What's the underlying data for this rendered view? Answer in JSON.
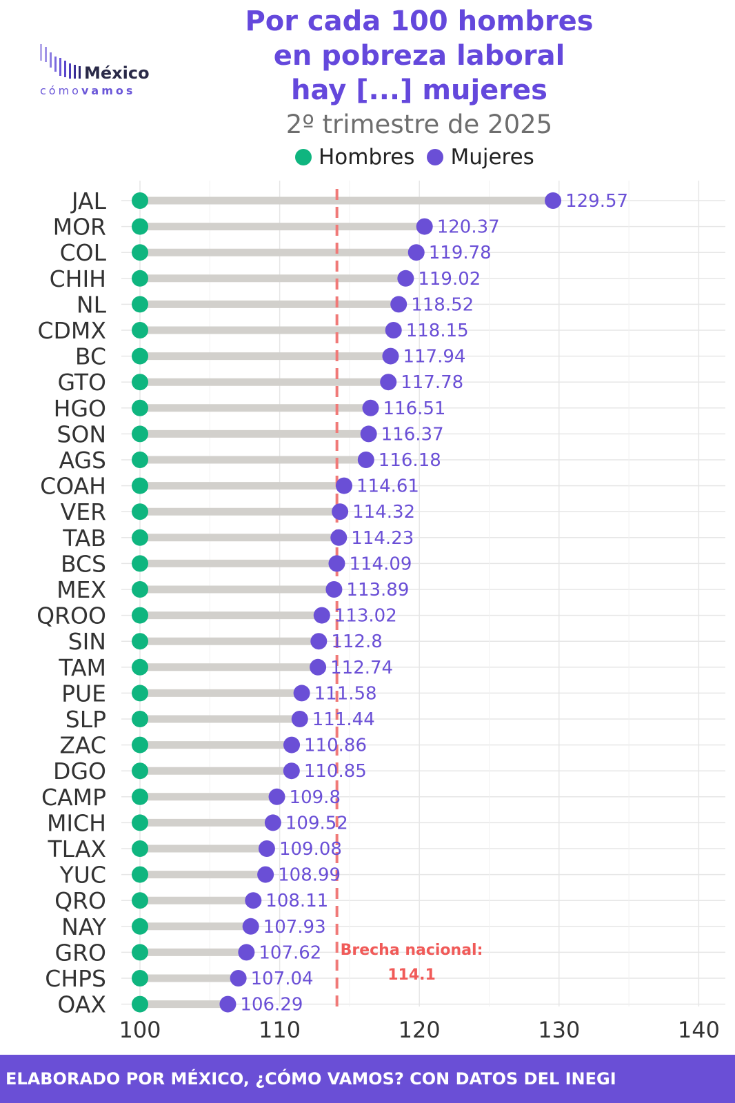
{
  "logo": {
    "word1": "México",
    "word2a": "cómo",
    "word2b": "vamos"
  },
  "title_lines": [
    "Por cada 100 hombres",
    "en pobreza laboral",
    "hay [...] mujeres"
  ],
  "subtitle": "2º trimestre de 2025",
  "legend": [
    {
      "label": "Hombres",
      "color": "#0fb57f"
    },
    {
      "label": "Mujeres",
      "color": "#6a4fd6"
    }
  ],
  "colors": {
    "hombres": "#0fb57f",
    "mujeres": "#6a4fd6",
    "segment": "#d2d0cc",
    "reference": "#f07a78",
    "reference_text": "#f05a58",
    "grid": "#e6e6e6",
    "footer_bg": "#6a4fd6"
  },
  "chart_data": {
    "type": "dumbbell",
    "title": "Por cada 100 hombres en pobreza laboral hay [...] mujeres",
    "subtitle": "2º trimestre de 2025",
    "xlim": [
      100,
      140
    ],
    "x_ticks": [
      100,
      110,
      120,
      130,
      140
    ],
    "grid": true,
    "legend_position": "top",
    "categories": [
      "JAL",
      "MOR",
      "COL",
      "CHIH",
      "NL",
      "CDMX",
      "BC",
      "GTO",
      "HGO",
      "SON",
      "AGS",
      "COAH",
      "VER",
      "TAB",
      "BCS",
      "MEX",
      "QROO",
      "SIN",
      "TAM",
      "PUE",
      "SLP",
      "ZAC",
      "DGO",
      "CAMP",
      "MICH",
      "TLAX",
      "YUC",
      "QRO",
      "NAY",
      "GRO",
      "CHPS",
      "OAX"
    ],
    "series": [
      {
        "name": "Hombres",
        "values": [
          100,
          100,
          100,
          100,
          100,
          100,
          100,
          100,
          100,
          100,
          100,
          100,
          100,
          100,
          100,
          100,
          100,
          100,
          100,
          100,
          100,
          100,
          100,
          100,
          100,
          100,
          100,
          100,
          100,
          100,
          100,
          100
        ]
      },
      {
        "name": "Mujeres",
        "values": [
          129.57,
          120.37,
          119.78,
          119.02,
          118.52,
          118.15,
          117.94,
          117.78,
          116.51,
          116.37,
          116.18,
          114.61,
          114.32,
          114.23,
          114.09,
          113.89,
          113.02,
          112.8,
          112.74,
          111.58,
          111.44,
          110.86,
          110.85,
          109.8,
          109.52,
          109.08,
          108.99,
          108.11,
          107.93,
          107.62,
          107.04,
          106.29
        ]
      }
    ],
    "value_labels": [
      "129.57",
      "120.37",
      "119.78",
      "119.02",
      "118.52",
      "118.15",
      "117.94",
      "117.78",
      "116.51",
      "116.37",
      "116.18",
      "114.61",
      "114.32",
      "114.23",
      "114.09",
      "113.89",
      "113.02",
      "112.8",
      "112.74",
      "111.58",
      "111.44",
      "110.86",
      "110.85",
      "109.8",
      "109.52",
      "109.08",
      "108.99",
      "108.11",
      "107.93",
      "107.62",
      "107.04",
      "106.29"
    ],
    "reference_line": {
      "value": 114.1,
      "label_line1": "Brecha nacional:",
      "label_line2": "114.1"
    }
  },
  "footer": "ELABORADO POR MÉXICO, ¿CÓMO VAMOS? CON DATOS DEL INEGI"
}
